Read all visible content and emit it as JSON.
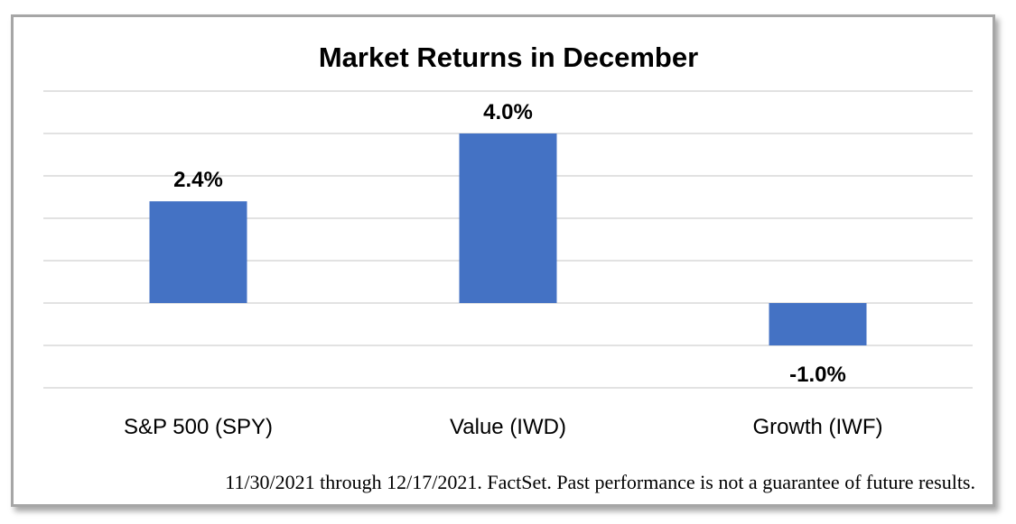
{
  "chart_data": {
    "type": "bar",
    "title": "Market Returns in December",
    "categories": [
      "S&P 500 (SPY)",
      "Value (IWD)",
      "Growth (IWF)"
    ],
    "values": [
      2.4,
      4.0,
      -1.0
    ],
    "data_labels": [
      "2.4%",
      "4.0%",
      "-1.0%"
    ],
    "ylim": [
      -2.0,
      5.0
    ],
    "grid": true,
    "legend": "none",
    "bar_color": "#4472c4",
    "axis_labels_visible": false
  },
  "footnote": "11/30/2021 through 12/17/2021.  FactSet.  Past performance is not a guarantee of future results."
}
